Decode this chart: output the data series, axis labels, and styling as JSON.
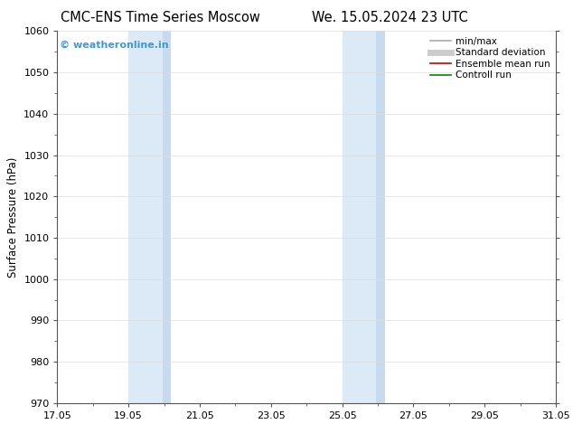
{
  "title_left": "CMC-ENS Time Series Moscow",
  "title_right": "We. 15.05.2024 23 UTC",
  "ylabel": "Surface Pressure (hPa)",
  "xlabel": "",
  "ylim": [
    970,
    1060
  ],
  "yticks": [
    970,
    980,
    990,
    1000,
    1010,
    1020,
    1030,
    1040,
    1050,
    1060
  ],
  "xlim_start": 0.0,
  "xlim_end": 14.0,
  "xtick_labels": [
    "17.05",
    "19.05",
    "21.05",
    "23.05",
    "25.05",
    "27.05",
    "29.05",
    "31.05"
  ],
  "xtick_positions": [
    0,
    2,
    4,
    6,
    8,
    10,
    12,
    14
  ],
  "shaded_regions": [
    {
      "xmin": 2.0,
      "xmax": 2.95,
      "color": "#dce9f7"
    },
    {
      "xmin": 2.95,
      "xmax": 3.2,
      "color": "#c8daf0"
    },
    {
      "xmin": 8.0,
      "xmax": 8.95,
      "color": "#dce9f7"
    },
    {
      "xmin": 8.95,
      "xmax": 9.2,
      "color": "#c8daf0"
    }
  ],
  "watermark_text": "© weatheronline.in",
  "watermark_color": "#4499cc",
  "legend_entries": [
    {
      "label": "min/max",
      "color": "#aaaaaa",
      "lw": 1.2
    },
    {
      "label": "Standard deviation",
      "color": "#cccccc",
      "lw": 5
    },
    {
      "label": "Ensemble mean run",
      "color": "#cc0000",
      "lw": 1.2
    },
    {
      "label": "Controll run",
      "color": "#008800",
      "lw": 1.2
    }
  ],
  "bg_color": "#ffffff",
  "title_fontsize": 10.5,
  "axis_label_fontsize": 8.5,
  "tick_fontsize": 8,
  "legend_fontsize": 7.5
}
